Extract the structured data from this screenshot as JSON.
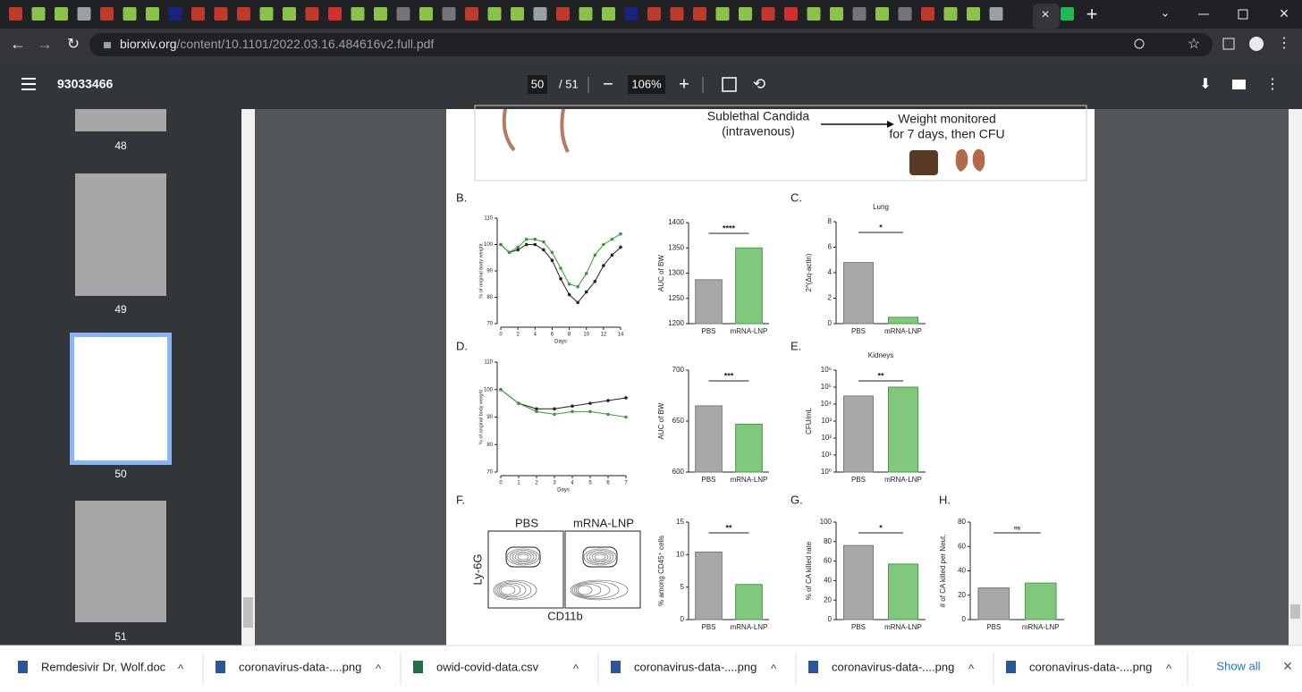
{
  "browser": {
    "url_host": "biorxiv.org",
    "url_path": "/content/10.1101/2022.03.16.484616v2.full.pdf"
  },
  "pdf_toolbar": {
    "title": "93033466",
    "page": "50",
    "total": "/ 51",
    "zoom": "106%"
  },
  "thumbnails": [
    "48",
    "49",
    "50",
    "51"
  ],
  "figure": {
    "schematic": [
      "Sublethal Candida",
      "(intravenous)",
      "Weight monitored",
      "for 7 days, then CFU"
    ],
    "bar_colors": [
      "#a8a8a8",
      "#80c97c"
    ],
    "line_colors": [
      "#222222",
      "#3a9a3a"
    ],
    "line_charts": [
      {
        "label": "B.",
        "ylabel": "% of original body weight",
        "xlabel": "Days",
        "ylim": [
          70,
          110
        ],
        "yticks": [
          70,
          80,
          90,
          100,
          110
        ],
        "xlim": [
          0,
          14
        ],
        "xticks": [
          0,
          2,
          4,
          6,
          8,
          10,
          12,
          14
        ],
        "x": [
          0,
          1,
          2,
          3,
          4,
          5,
          6,
          7,
          8,
          9,
          10,
          11,
          12,
          13,
          14
        ],
        "series": [
          {
            "values": [
              100,
              97,
              98,
              100,
              100,
              98,
              94,
              87,
              81,
              78,
              82,
              86,
              92,
              96,
              99
            ]
          },
          {
            "values": [
              100,
              97,
              99,
              102,
              102,
              101,
              97,
              91,
              85,
              84,
              89,
              96,
              100,
              102,
              104
            ]
          }
        ]
      },
      {
        "label": "D.",
        "ylabel": "% of original body weight",
        "xlabel": "Days",
        "ylim": [
          70,
          110
        ],
        "yticks": [
          70,
          80,
          90,
          100,
          110
        ],
        "xlim": [
          0,
          7
        ],
        "xticks": [
          0,
          1,
          2,
          3,
          4,
          5,
          6,
          7
        ],
        "x": [
          0,
          1,
          2,
          3,
          4,
          5,
          6,
          7
        ],
        "series": [
          {
            "values": [
              100,
              95,
              93,
              93,
              94,
              95,
              96,
              97
            ]
          },
          {
            "values": [
              100,
              95,
              92,
              91,
              92,
              92,
              91,
              90
            ]
          }
        ]
      }
    ],
    "bar_charts": [
      {
        "ylabel": "AUC of BW",
        "ylim": [
          1200,
          1400
        ],
        "yticks": [
          1200,
          1250,
          1300,
          1350,
          1400
        ],
        "categories": [
          "PBS",
          "mRNA-LNP"
        ],
        "values": [
          1287,
          1350
        ],
        "significance": "****"
      },
      {
        "label": "C.",
        "title": "Lung",
        "ylabel": "2^(Δq-actin)",
        "ylim": [
          0,
          8
        ],
        "yticks": [
          0,
          2,
          4,
          6,
          8
        ],
        "categories": [
          "PBS",
          "mRNA-LNP"
        ],
        "values": [
          4.8,
          0.5
        ],
        "significance": "*"
      },
      {
        "ylabel": "AUC of BW",
        "ylim": [
          600,
          700
        ],
        "yticks": [
          600,
          650,
          700
        ],
        "categories": [
          "PBS",
          "mRNA-LNP"
        ],
        "values": [
          665,
          647
        ],
        "significance": "***"
      },
      {
        "label": "E.",
        "title": "Kidneys",
        "ylabel": "CFU/mL",
        "log": true,
        "ylim": [
          1,
          1000000
        ],
        "yticks": [
          {
            "value": 1,
            "label": "10⁰"
          },
          {
            "value": 10,
            "label": "10¹"
          },
          {
            "value": 100,
            "label": "10²"
          },
          {
            "value": 1000,
            "label": "10³"
          },
          {
            "value": 10000,
            "label": "10⁴"
          },
          {
            "value": 100000,
            "label": "10⁵"
          },
          {
            "value": 1000000,
            "label": "10⁶"
          }
        ],
        "categories": [
          "PBS",
          "mRNA-LNP"
        ],
        "values": [
          30000,
          100000
        ],
        "significance": "**"
      },
      {
        "ylabel": "% among CD45⁺ cells",
        "ylim": [
          0,
          15
        ],
        "yticks": [
          0,
          5,
          10,
          15
        ],
        "categories": [
          "PBS",
          "mRNA-LNP"
        ],
        "values": [
          10.4,
          5.4
        ],
        "significance": "**"
      },
      {
        "label": "G.",
        "ylabel": "% of CA killed rate",
        "ylim": [
          0,
          100
        ],
        "yticks": [
          0,
          20,
          40,
          60,
          80,
          100
        ],
        "categories": [
          "PBS",
          "mRNA-LNP"
        ],
        "values": [
          76,
          57
        ],
        "significance": "*"
      },
      {
        "label": "H.",
        "ylabel": "# of CA killed per Neut.",
        "ylim": [
          0,
          80
        ],
        "yticks": [
          0,
          20,
          40,
          60,
          80
        ],
        "categories": [
          "PBS",
          "mRNA-LNP"
        ],
        "values": [
          26,
          30
        ],
        "significance": "ns"
      }
    ],
    "flow": {
      "label": "F.",
      "titles": [
        "PBS",
        "mRNA-LNP"
      ],
      "ylabel": "Ly-6G",
      "xlabel": "CD11b"
    }
  },
  "downloads": [
    "Remdesivir Dr. Wolf.doc",
    "coronavirus-data-....png",
    "owid-covid-data.csv",
    "coronavirus-data-....png",
    "coronavirus-data-....png",
    "coronavirus-data-....png"
  ],
  "show_all": "Show all"
}
